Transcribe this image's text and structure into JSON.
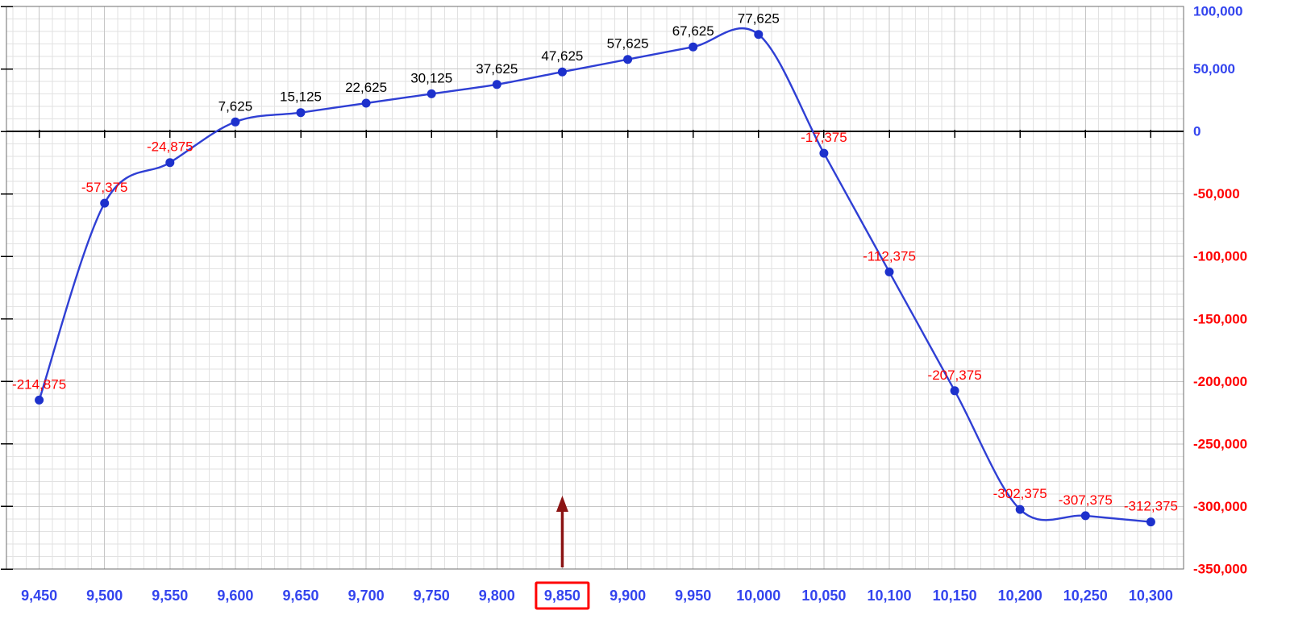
{
  "chart_data": {
    "type": "line",
    "title": "",
    "xlabel": "",
    "ylabel": "",
    "x": [
      9450,
      9500,
      9550,
      9600,
      9650,
      9700,
      9750,
      9800,
      9850,
      9900,
      9950,
      10000,
      10050,
      10100,
      10150,
      10200,
      10250,
      10300
    ],
    "values": [
      -214875,
      -57375,
      -24875,
      7625,
      15125,
      22625,
      30125,
      37625,
      47625,
      57625,
      67625,
      77625,
      -17375,
      -112375,
      -207375,
      -302375,
      -307375,
      -312375
    ],
    "point_labels": [
      "-214,875",
      "-57,375",
      "-24,875",
      "7,625",
      "15,125",
      "22,625",
      "30,125",
      "37,625",
      "47,625",
      "57,625",
      "67,625",
      "77,625",
      "-17,375",
      "-112,375",
      "-207,375",
      "-302,375",
      "-307,375",
      "-312,375"
    ],
    "x_tick_labels": [
      "9,450",
      "9,500",
      "9,550",
      "9,600",
      "9,650",
      "9,700",
      "9,750",
      "9,800",
      "9,850",
      "9,900",
      "9,950",
      "10,000",
      "10,050",
      "10,100",
      "10,150",
      "10,200",
      "10,250",
      "10,300"
    ],
    "y_ticks": [
      {
        "value": 100000,
        "label": "100,000"
      },
      {
        "value": 50000,
        "label": "50,000"
      },
      {
        "value": 0,
        "label": "0"
      },
      {
        "value": -50000,
        "label": "-50,000"
      },
      {
        "value": -100000,
        "label": "-100,000"
      },
      {
        "value": -150000,
        "label": "-150,000"
      },
      {
        "value": -200000,
        "label": "-200,000"
      },
      {
        "value": -250000,
        "label": "-250,000"
      },
      {
        "value": -300000,
        "label": "-300,000"
      },
      {
        "value": -350000,
        "label": "-350,000"
      }
    ],
    "xlim": [
      9425,
      10325
    ],
    "ylim": [
      -350000,
      100000
    ],
    "grid": {
      "show": true,
      "minor_x_step": 10,
      "minor_y_step": 10000,
      "major_x_step": 50,
      "major_y_step": 50000
    },
    "legend": "none",
    "annotations": {
      "arrow": {
        "x": 9850,
        "direction": "up"
      },
      "highlighted_x_label": "9,850"
    },
    "colors": {
      "line": "#2f3fd4",
      "marker": "#1d31cc",
      "positive_label": "#000000",
      "negative_label": "#ff0000",
      "positive_tick": "#3344ee",
      "negative_tick": "#ff0000",
      "arrow": "#8b1414",
      "highlight_box": "#ff0000",
      "grid_minor": "#e2e2e2",
      "grid_major": "#c6c6c6",
      "zero_line": "#000000",
      "border": "#6e6e6e"
    }
  }
}
